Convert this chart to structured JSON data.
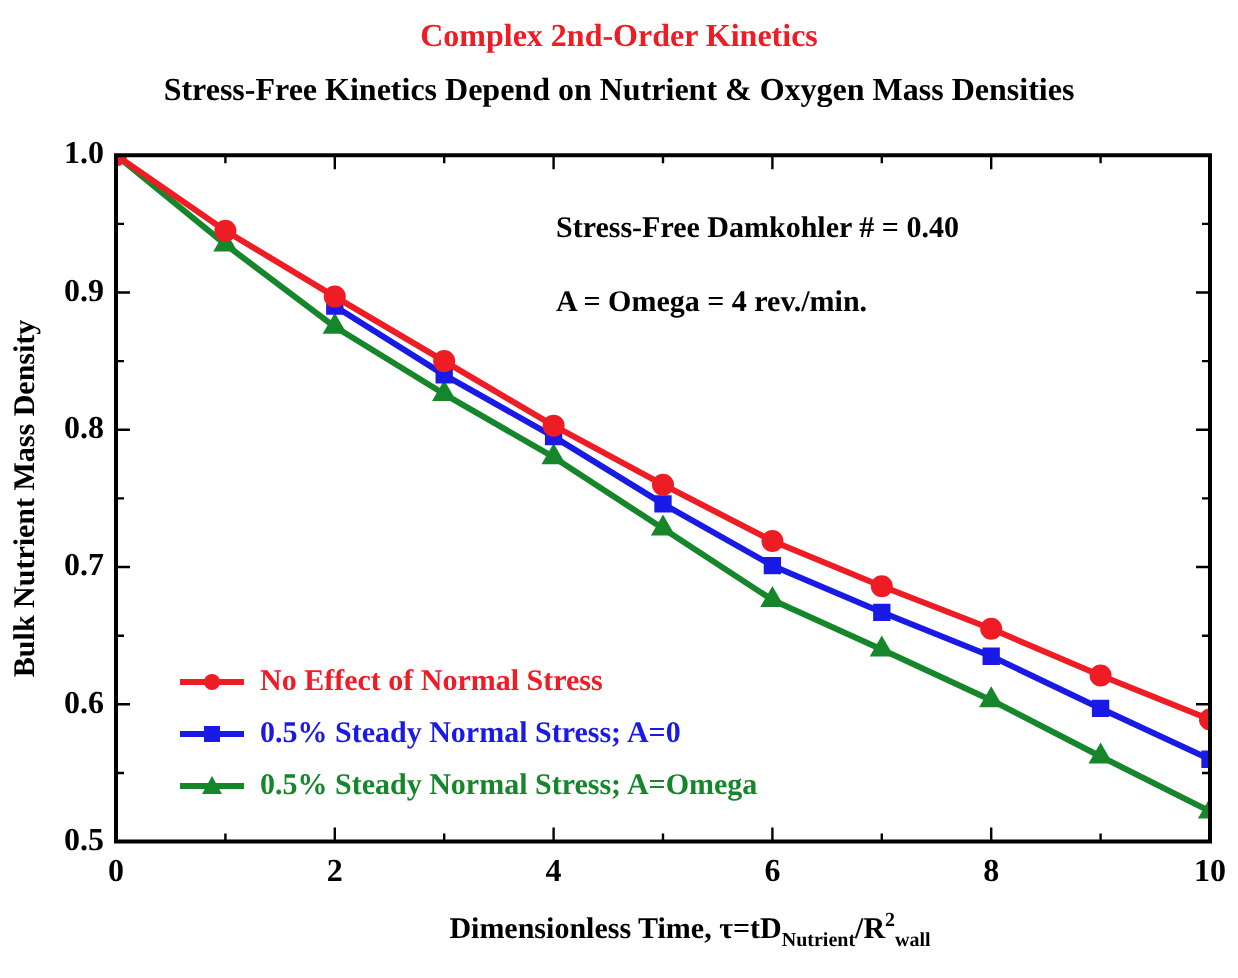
{
  "chart_data": {
    "type": "line",
    "title": "Complex 2nd-Order Kinetics",
    "subtitle": "Stress-Free Kinetics Depend on Nutrient & Oxygen Mass Densities",
    "xlabel": "Dimensionless Time, τ=tD$_{Nutrient}$/R$^{2}$$_{wall}$",
    "ylabel": "Bulk Nutrient Mass Density",
    "annotations": [
      "Stress-Free Damkohler # = 0.40",
      "A = Omega = 4 rev./min."
    ],
    "x": [
      0,
      1,
      2,
      3,
      4,
      5,
      6,
      7,
      8,
      9,
      10
    ],
    "series": [
      {
        "name": "No Effect of Normal Stress",
        "color": "#ee1c24",
        "marker": "circle",
        "values": [
          1.0,
          0.945,
          0.897,
          0.85,
          0.803,
          0.76,
          0.719,
          0.686,
          0.655,
          0.621,
          0.589
        ]
      },
      {
        "name": "0.5% Steady Normal Stress; A=0",
        "color": "#1a1ae6",
        "marker": "square",
        "values": [
          null,
          null,
          0.89,
          0.84,
          0.795,
          0.746,
          0.701,
          0.667,
          0.635,
          0.597,
          0.56
        ]
      },
      {
        "name": "0.5% Steady Normal Stress; A=Omega",
        "color": "#16862a",
        "marker": "triangle",
        "values": [
          1.0,
          0.935,
          0.875,
          0.826,
          0.78,
          0.728,
          0.676,
          0.64,
          0.603,
          0.562,
          0.522
        ]
      }
    ],
    "xlim": [
      0,
      10
    ],
    "xticks": [
      0,
      {
        "value": 1,
        "label": null
      },
      2,
      {
        "value": 3,
        "label": null
      },
      4,
      {
        "value": 5,
        "label": null
      },
      6,
      {
        "value": 7,
        "label": null
      },
      8,
      {
        "value": 9,
        "label": null
      },
      10
    ],
    "ylim": [
      0.5,
      1.0
    ],
    "yticks": [
      0.5,
      {
        "value": 0.55,
        "label": null
      },
      0.6,
      {
        "value": 0.65,
        "label": null
      },
      0.7,
      {
        "value": 0.75,
        "label": null
      },
      0.8,
      {
        "value": 0.85,
        "label": null
      },
      0.9,
      {
        "value": 0.95,
        "label": null
      },
      {
        "value": 1.0,
        "label": "1.0"
      }
    ],
    "grid": false,
    "legend": "bottom left",
    "line_style": "solid"
  }
}
